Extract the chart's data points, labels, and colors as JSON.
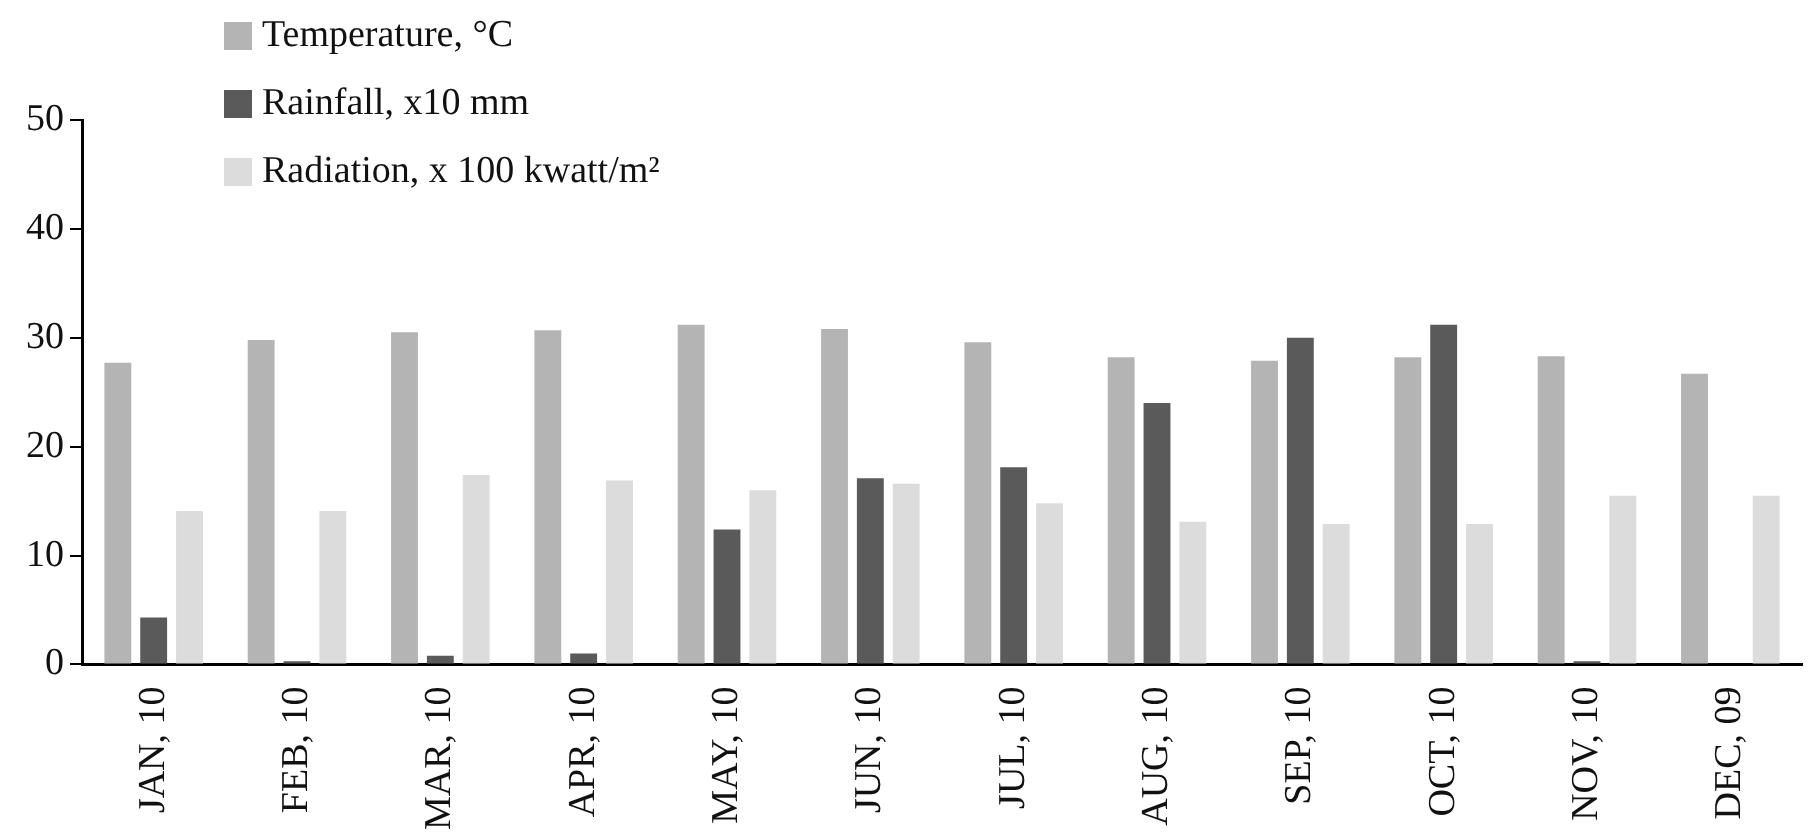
{
  "chart_data": {
    "type": "bar",
    "categories": [
      "JAN, 10",
      "FEB, 10",
      "MAR, 10",
      "APR, 10",
      "MAY, 10",
      "JUN, 10",
      "JUL, 10",
      "AUG, 10",
      "SEP, 10",
      "OCT, 10",
      "NOV, 10",
      "DEC, 09"
    ],
    "series": [
      {
        "name": "Temperature, °C",
        "color": "#b4b4b4",
        "values": [
          27.7,
          29.8,
          30.5,
          30.7,
          31.2,
          30.8,
          29.6,
          28.2,
          27.9,
          28.2,
          28.3,
          26.7
        ]
      },
      {
        "name": "Rainfall, x10 mm",
        "color": "#5a5a5a",
        "values": [
          4.3,
          0.3,
          0.8,
          1.0,
          12.4,
          17.1,
          18.1,
          24.0,
          30.0,
          31.2,
          0.3,
          0
        ]
      },
      {
        "name": "Radiation, x 100 kwatt/m²",
        "color": "#dcdcdc",
        "values": [
          14.1,
          14.1,
          17.4,
          16.9,
          16.0,
          16.6,
          14.8,
          13.1,
          12.9,
          12.9,
          15.5,
          15.5
        ]
      }
    ],
    "ylim": [
      0,
      50
    ],
    "yticks": [
      0,
      10,
      20,
      30,
      40,
      50
    ],
    "grid": false,
    "legend": "top left"
  }
}
